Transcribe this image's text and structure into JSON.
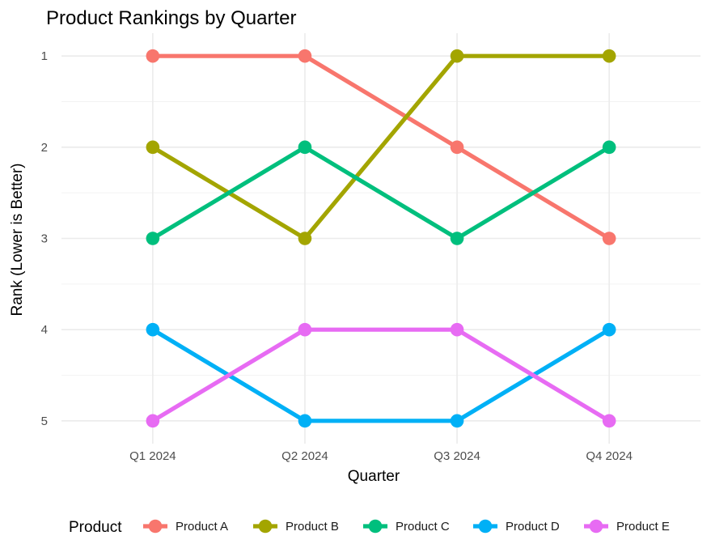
{
  "chart_data": {
    "type": "line",
    "title": "Product Rankings by Quarter",
    "xlabel": "Quarter",
    "ylabel": "Rank (Lower is Better)",
    "categories": [
      "Q1 2024",
      "Q2 2024",
      "Q3 2024",
      "Q4 2024"
    ],
    "y_ticks": [
      "1",
      "2",
      "3",
      "4",
      "5"
    ],
    "ylim": [
      5.25,
      0.75
    ],
    "y_reversed": true,
    "grid": true,
    "legend": {
      "title": "Product",
      "position": "bottom"
    },
    "series": [
      {
        "name": "Product A",
        "color": "#F8766D",
        "values": [
          1,
          1,
          2,
          3
        ]
      },
      {
        "name": "Product B",
        "color": "#A3A500",
        "values": [
          2,
          3,
          1,
          1
        ]
      },
      {
        "name": "Product C",
        "color": "#00BF7D",
        "values": [
          3,
          2,
          3,
          2
        ]
      },
      {
        "name": "Product D",
        "color": "#00B0F6",
        "values": [
          4,
          5,
          5,
          4
        ]
      },
      {
        "name": "Product E",
        "color": "#E76BF3",
        "values": [
          5,
          4,
          4,
          5
        ]
      }
    ]
  }
}
